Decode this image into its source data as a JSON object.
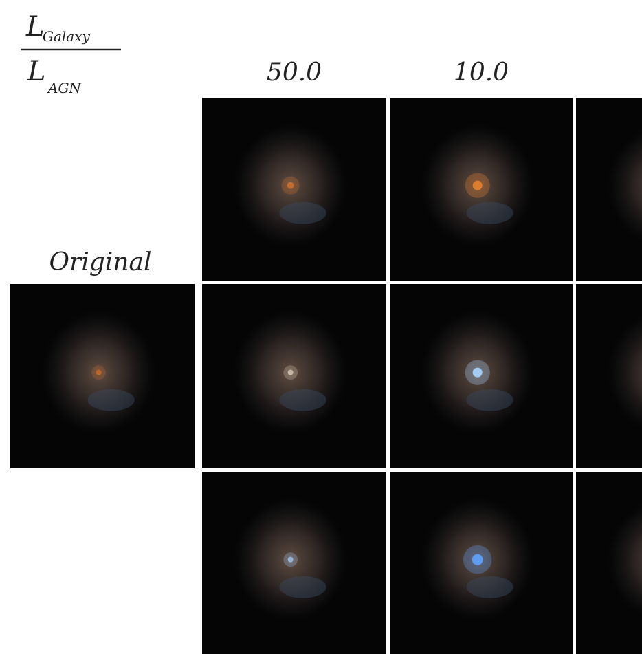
{
  "ratio_label": {
    "numerator": {
      "symbol": "L",
      "subscript": "Galaxy"
    },
    "denominator": {
      "symbol": "L",
      "subscript": "AGN"
    }
  },
  "columns": [
    "50.0",
    "10.0"
  ],
  "original_label": "Original"
}
